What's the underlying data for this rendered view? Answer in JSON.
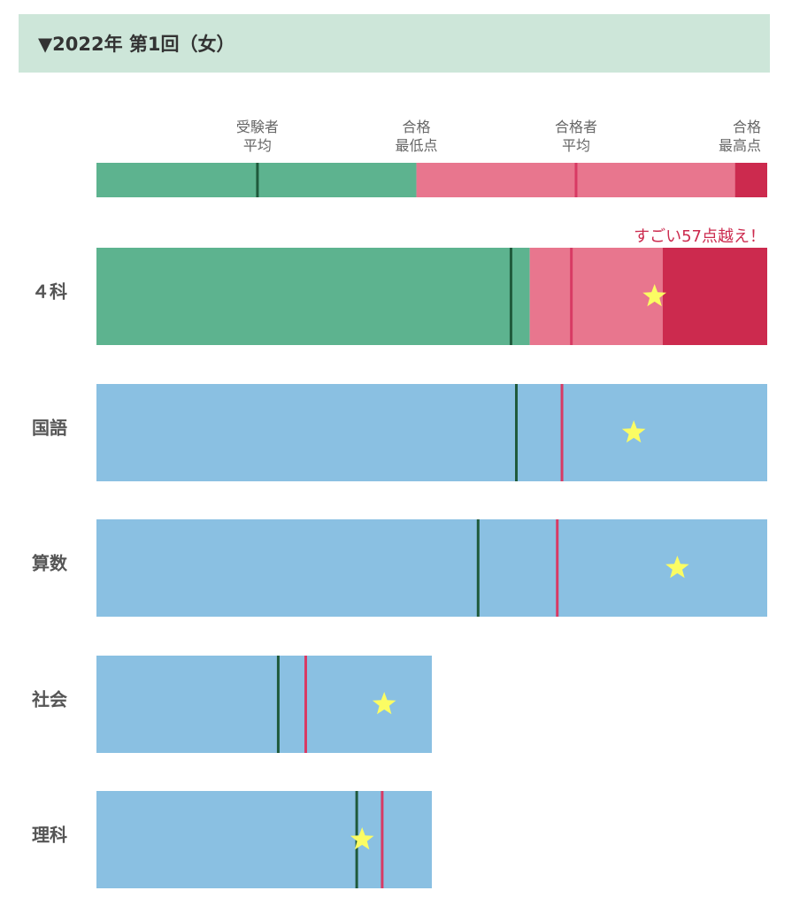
{
  "header": {
    "title": "▼2022年 第1回（女）"
  },
  "legend": {
    "examinee_avg": [
      "受験者",
      "平均"
    ],
    "pass_min": [
      "合格",
      "最低点"
    ],
    "passer_avg": [
      "合格者",
      "平均"
    ],
    "pass_max": [
      "合格",
      "最高点"
    ]
  },
  "callout": "すごい57点越え！",
  "colors": {
    "fail_zone": "#5db38f",
    "pass_zone": "#e8768e",
    "top_zone": "#cc2a4e",
    "subject_bar": "#8ac0e2",
    "examinee_avg_line": "#1f5a3c",
    "passer_avg_line": "#d83a64",
    "star": "#fbfc63"
  },
  "chart_data": {
    "type": "bar",
    "scale": {
      "min": 0,
      "max": 100
    },
    "legend_bar": {
      "examinee_avg": 24,
      "pass_min": 47.7,
      "passer_avg": 71.5,
      "pass_max": 95.2
    },
    "subjects": [
      {
        "key": "four",
        "label": "４科",
        "full": 100,
        "style": "zones",
        "examinee_avg": 61.8,
        "pass_min": 64.6,
        "passer_avg": 70.8,
        "pass_max": 84.4,
        "score": 83.2
      },
      {
        "key": "japanese",
        "label": "国語",
        "full": 100,
        "style": "plain",
        "examinee_avg": 62.6,
        "passer_avg": 69.4,
        "score": 80.1
      },
      {
        "key": "math",
        "label": "算数",
        "full": 100,
        "style": "plain",
        "examinee_avg": 56.9,
        "passer_avg": 68.7,
        "score": 86.6
      },
      {
        "key": "social",
        "label": "社会",
        "full": 50,
        "style": "plain",
        "examinee_avg": 27.1,
        "passer_avg": 31.2,
        "score": 42.9
      },
      {
        "key": "science",
        "label": "理科",
        "full": 50,
        "style": "plain",
        "examinee_avg": 38.8,
        "passer_avg": 42.6,
        "score": 39.6
      }
    ]
  }
}
